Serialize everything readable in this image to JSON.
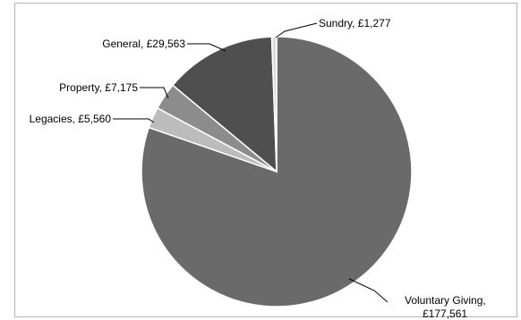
{
  "chart_data": {
    "type": "pie",
    "title": "",
    "slices": [
      {
        "label": "Voluntary Giving, £177,561",
        "value": 177561,
        "color": "#6a6a6a"
      },
      {
        "label": "Legacies, £5,560",
        "value": 5560,
        "color": "#bcbcbc"
      },
      {
        "label": "Property, £7,175",
        "value": 7175,
        "color": "#8c8c8c"
      },
      {
        "label": "General, £29,563",
        "value": 29563,
        "color": "#4f4f4f"
      },
      {
        "label": "Sundry, £1,277",
        "value": 1277,
        "color": "#dcdcdc"
      }
    ],
    "legend": "none"
  }
}
